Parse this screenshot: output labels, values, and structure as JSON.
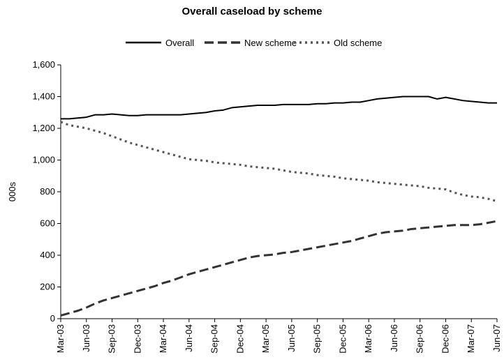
{
  "chart_data": {
    "type": "line",
    "title": "Overall caseload by scheme",
    "xlabel": "",
    "ylabel": "000s",
    "ylim": [
      0,
      1600
    ],
    "yticks": [
      0,
      200,
      400,
      600,
      800,
      1000,
      1200,
      1400,
      1600
    ],
    "ytick_labels": [
      "0",
      "200",
      "400",
      "600",
      "800",
      "1,000",
      "1,200",
      "1,400",
      "1,600"
    ],
    "x": [
      "Mar-03",
      "Apr-03",
      "May-03",
      "Jun-03",
      "Jul-03",
      "Aug-03",
      "Sep-03",
      "Oct-03",
      "Nov-03",
      "Dec-03",
      "Jan-04",
      "Feb-04",
      "Mar-04",
      "Apr-04",
      "May-04",
      "Jun-04",
      "Jul-04",
      "Aug-04",
      "Sep-04",
      "Oct-04",
      "Nov-04",
      "Dec-04",
      "Jan-05",
      "Feb-05",
      "Mar-05",
      "Apr-05",
      "May-05",
      "Jun-05",
      "Jul-05",
      "Aug-05",
      "Sep-05",
      "Oct-05",
      "Nov-05",
      "Dec-05",
      "Jan-06",
      "Feb-06",
      "Mar-06",
      "Apr-06",
      "May-06",
      "Jun-06",
      "Jul-06",
      "Aug-06",
      "Sep-06",
      "Oct-06",
      "Nov-06",
      "Dec-06",
      "Jan-07",
      "Feb-07",
      "Mar-07",
      "Apr-07",
      "May-07",
      "Jun-07"
    ],
    "xtick_labels": [
      "Mar-03",
      "Jun-03",
      "Sep-03",
      "Dec-03",
      "Mar-04",
      "Jun-04",
      "Sep-04",
      "Dec-04",
      "Mar-05",
      "Jun-05",
      "Sep-05",
      "Dec-05",
      "Mar-06",
      "Jun-06",
      "Sep-06",
      "Dec-06",
      "Mar-07",
      "Jun-07"
    ],
    "grid": false,
    "legend_position": "top",
    "series": [
      {
        "name": "Overall",
        "style": "solid",
        "color": "#000000",
        "values": [
          1260,
          1260,
          1265,
          1270,
          1285,
          1285,
          1290,
          1285,
          1280,
          1280,
          1285,
          1285,
          1285,
          1285,
          1285,
          1290,
          1295,
          1300,
          1310,
          1315,
          1330,
          1335,
          1340,
          1345,
          1345,
          1345,
          1350,
          1350,
          1350,
          1350,
          1355,
          1355,
          1360,
          1360,
          1365,
          1365,
          1375,
          1385,
          1390,
          1395,
          1400,
          1400,
          1400,
          1400,
          1385,
          1395,
          1385,
          1375,
          1370,
          1365,
          1360,
          1360
        ]
      },
      {
        "name": "New scheme",
        "style": "dashed",
        "color": "#333333",
        "values": [
          20,
          35,
          50,
          70,
          95,
          115,
          130,
          145,
          160,
          175,
          190,
          205,
          225,
          240,
          260,
          280,
          295,
          310,
          325,
          340,
          355,
          370,
          385,
          395,
          400,
          405,
          415,
          420,
          430,
          440,
          450,
          460,
          470,
          480,
          490,
          505,
          520,
          535,
          545,
          550,
          555,
          565,
          570,
          575,
          580,
          585,
          590,
          590,
          590,
          595,
          605,
          615
        ]
      },
      {
        "name": "Old scheme",
        "style": "dotted",
        "color": "#555555",
        "values": [
          1240,
          1220,
          1210,
          1200,
          1185,
          1170,
          1150,
          1130,
          1110,
          1095,
          1080,
          1065,
          1050,
          1035,
          1020,
          1005,
          1000,
          995,
          985,
          980,
          975,
          970,
          960,
          955,
          950,
          945,
          935,
          925,
          920,
          915,
          905,
          900,
          895,
          885,
          880,
          875,
          870,
          860,
          855,
          850,
          845,
          840,
          835,
          825,
          820,
          815,
          795,
          780,
          770,
          765,
          755,
          740
        ]
      }
    ]
  }
}
